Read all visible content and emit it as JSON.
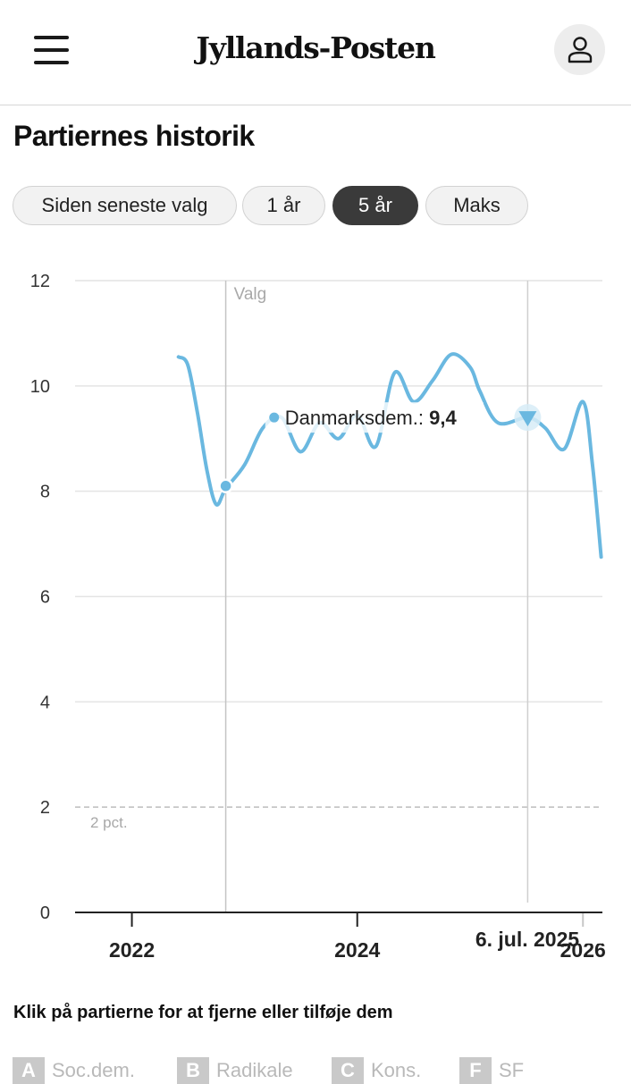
{
  "header": {
    "logo": "Jyllands-Posten",
    "menu_icon": "hamburger-menu-icon",
    "user_icon": "user-icon"
  },
  "page": {
    "title": "Partiernes historik"
  },
  "tabs": [
    {
      "label": "Siden seneste valg",
      "active": false
    },
    {
      "label": "1 år",
      "active": false
    },
    {
      "label": "5 år",
      "active": true
    },
    {
      "label": "Maks",
      "active": false
    }
  ],
  "chart_data": {
    "type": "line",
    "title": "",
    "xlabel": "",
    "ylabel": "",
    "ylim": [
      0,
      12
    ],
    "y_ticks": [
      "0",
      "2",
      "4",
      "6",
      "8",
      "10",
      "12"
    ],
    "x_ticks": [
      "2022",
      "2024",
      "2026"
    ],
    "grid": true,
    "threshold": {
      "value": 2,
      "label": "2 pct."
    },
    "events": [
      {
        "date": "2022-11-01",
        "label": "Valg"
      }
    ],
    "series": [
      {
        "name": "Danmarksdem.",
        "color": "#6ab8e0",
        "x": [
          "2022-06-01",
          "2022-07-01",
          "2022-08-01",
          "2022-09-01",
          "2022-10-01",
          "2022-11-01",
          "2023-01-01",
          "2023-03-01",
          "2023-05-01",
          "2023-07-01",
          "2023-09-01",
          "2023-11-01",
          "2024-01-01",
          "2024-03-01",
          "2024-05-01",
          "2024-07-01",
          "2024-09-01",
          "2024-11-01",
          "2025-01-01",
          "2025-02-01",
          "2025-04-01",
          "2025-07-06",
          "2025-09-01",
          "2025-11-01",
          "2026-01-01",
          "2026-02-01",
          "2026-03-01"
        ],
        "y": [
          10.55,
          10.4,
          9.5,
          8.4,
          7.75,
          8.05,
          8.5,
          9.2,
          9.4,
          8.75,
          9.3,
          9.0,
          9.45,
          8.85,
          10.25,
          9.7,
          10.1,
          10.6,
          10.35,
          9.9,
          9.3,
          9.4,
          9.2,
          8.8,
          9.7,
          8.5,
          6.75
        ]
      }
    ],
    "tooltip": {
      "date": "6. jul. 2025",
      "series": "Danmarksdem.:",
      "value": "9,4"
    },
    "markers": [
      {
        "date": "2022-11-01",
        "value": 8.1
      },
      {
        "date": "2025-07-06",
        "value": 9.4
      }
    ]
  },
  "instruction": "Klik på partierne for at fjerne eller tilføje dem",
  "parties": [
    {
      "letter": "A",
      "name": "Soc.dem."
    },
    {
      "letter": "B",
      "name": "Radikale"
    },
    {
      "letter": "C",
      "name": "Kons."
    },
    {
      "letter": "F",
      "name": "SF"
    }
  ]
}
